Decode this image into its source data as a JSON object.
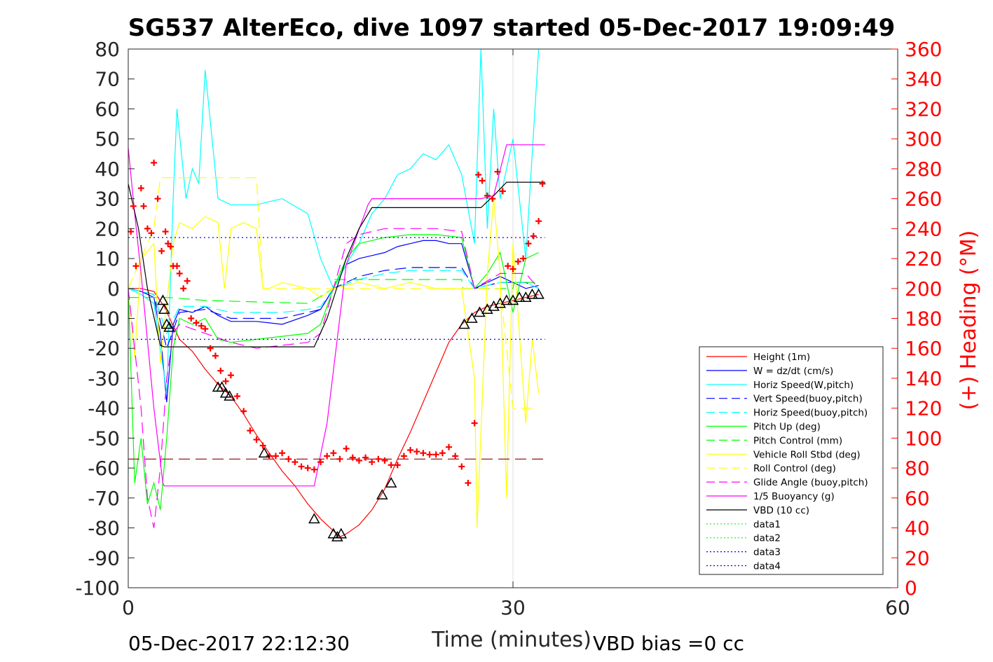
{
  "chart_data": {
    "type": "line",
    "title": "SG537 AlterEco, dive 1097 started 05-Dec-2017 19:09:49",
    "xlabel": "Time (minutes)",
    "ylabel": "",
    "ylabel_right": "(+) Heading (°M)",
    "xlim": [
      0,
      60
    ],
    "ylim": [
      -100,
      80
    ],
    "ylim_right": [
      0,
      360
    ],
    "x_ticks": [
      "0",
      "30",
      "60"
    ],
    "y_ticks": [
      "80",
      "70",
      "60",
      "50",
      "40",
      "30",
      "20",
      "10",
      "0",
      "-10",
      "-20",
      "-30",
      "-40",
      "-50",
      "-60",
      "-70",
      "-80",
      "-90",
      "-100"
    ],
    "y_ticks_right": [
      "360",
      "340",
      "320",
      "300",
      "280",
      "260",
      "240",
      "220",
      "200",
      "180",
      "160",
      "140",
      "120",
      "100",
      "80",
      "60",
      "40",
      "20",
      "0"
    ],
    "footer_left": "05-Dec-2017 22:12:30",
    "footer_right": "VBD bias =0 cc",
    "grid": "x at 30 only",
    "legend_position": "lower-right",
    "series": [
      {
        "name": "Height (1m)",
        "color": "#ff0000",
        "style": "solid",
        "x": [
          0,
          1,
          2,
          2.8,
          4,
          5,
          6,
          7,
          8,
          9,
          10,
          11,
          12,
          13,
          14,
          15,
          16,
          16.5,
          17,
          18,
          19,
          20,
          21,
          22,
          23,
          24,
          25,
          26,
          26.5,
          27,
          28,
          29,
          30,
          31,
          32
        ],
        "y": [
          0,
          0,
          -1,
          -6,
          -17,
          -21,
          -27,
          -32,
          -36,
          -42,
          -49,
          -55,
          -61,
          -66,
          -72,
          -77,
          -81,
          -83,
          -82,
          -79,
          -74,
          -67,
          -57,
          -48,
          -38,
          -28,
          -18,
          -12,
          -10,
          -8,
          -6,
          -5,
          -4,
          -3,
          -2
        ]
      },
      {
        "name": "W = dz/dt (cm/s)",
        "color": "#0000ff",
        "style": "solid",
        "x": [
          0,
          1,
          2,
          2.5,
          3,
          3.5,
          4,
          5,
          6,
          7,
          8,
          10,
          12,
          14,
          15,
          16,
          17,
          18,
          19,
          20,
          21,
          22,
          23,
          24,
          25,
          26,
          27,
          28,
          29,
          30,
          31,
          32
        ],
        "y": [
          0,
          -1,
          -3,
          -15,
          -38,
          -12,
          -7,
          -8,
          -6,
          -9,
          -11,
          -11,
          -12,
          -9,
          -7,
          0,
          8,
          10,
          11,
          12,
          14,
          15,
          16,
          16,
          15,
          15,
          0,
          2,
          4,
          2,
          0,
          1
        ]
      },
      {
        "name": "Horiz Speed(W,pitch)",
        "color": "#00ffff",
        "style": "solid",
        "x": [
          0,
          1,
          2,
          2.5,
          3,
          3.5,
          3.8,
          4.5,
          5,
          5.5,
          6,
          7,
          8,
          10,
          12,
          14,
          15,
          16,
          17,
          18,
          19,
          20,
          21,
          22,
          23,
          24,
          25,
          26,
          27,
          27.5,
          28,
          28.5,
          29,
          30,
          31,
          32
        ],
        "y": [
          0,
          -2,
          -5,
          -20,
          -35,
          30,
          60,
          30,
          40,
          35,
          73,
          30,
          28,
          28,
          30,
          25,
          10,
          0,
          8,
          15,
          25,
          30,
          38,
          40,
          45,
          43,
          48,
          38,
          15,
          80,
          20,
          60,
          30,
          50,
          10,
          80
        ]
      },
      {
        "name": "Vert Speed(buoy,pitch)",
        "color": "#0000ff",
        "style": "dashed",
        "x": [
          0,
          2,
          3,
          4,
          6,
          8,
          10,
          12,
          14,
          15,
          16,
          18,
          20,
          22,
          24,
          26,
          27,
          29,
          31,
          32
        ],
        "y": [
          0,
          -2,
          -20,
          -8,
          -7,
          -10,
          -10,
          -10,
          -8,
          -7,
          0,
          4,
          6,
          7,
          7,
          7,
          0,
          2,
          2,
          0
        ]
      },
      {
        "name": "Horiz Speed(buoy,pitch)",
        "color": "#00ffff",
        "style": "dashed",
        "x": [
          0,
          2,
          3,
          4,
          6,
          8,
          10,
          12,
          14,
          15,
          16,
          18,
          20,
          22,
          24,
          26,
          27,
          29,
          31,
          32
        ],
        "y": [
          0,
          -2,
          -15,
          -6,
          -6,
          -8,
          -8,
          -8,
          -7,
          -6,
          0,
          3,
          5,
          6,
          6,
          6,
          0,
          2,
          2,
          0
        ]
      },
      {
        "name": "Pitch Up (deg)",
        "color": "#00ff00",
        "style": "solid",
        "x": [
          0,
          0.5,
          1,
          1.5,
          2,
          2.5,
          3,
          3.5,
          4,
          5,
          6,
          7,
          8,
          10,
          12,
          14,
          15,
          16,
          17,
          18,
          20,
          22,
          24,
          26,
          27,
          28,
          29,
          30,
          31,
          32
        ],
        "y": [
          0,
          -65,
          -50,
          -72,
          -65,
          -74,
          -50,
          -20,
          -10,
          -12,
          -10,
          -17,
          -18,
          -17,
          -16,
          -15,
          -12,
          0,
          10,
          15,
          17,
          18,
          18,
          17,
          0,
          5,
          12,
          -8,
          10,
          12
        ]
      },
      {
        "name": "Pitch Control (mm)",
        "color": "#00ff00",
        "style": "dashed",
        "x": [
          0,
          3,
          3.1,
          6,
          6.1,
          14,
          14.1,
          16,
          16.1,
          26,
          26.1,
          30,
          30.1,
          32
        ],
        "y": [
          -3,
          -3,
          -3,
          -4,
          -4,
          -5,
          -5,
          0,
          3,
          3,
          0,
          0,
          2,
          2
        ]
      },
      {
        "name": "Vehicle Roll Stbd (deg)",
        "color": "#ffff00",
        "style": "solid",
        "x": [
          0,
          0.5,
          1,
          2,
          2.5,
          3,
          3.5,
          4,
          5,
          6,
          7,
          7.5,
          8,
          9,
          10,
          10.5,
          11,
          12,
          14,
          15,
          16,
          18,
          20,
          22,
          24,
          26,
          27,
          27.2,
          28,
          28.5,
          29,
          29.5,
          30,
          31,
          31.5,
          32
        ],
        "y": [
          0,
          -23,
          10,
          15,
          -25,
          -5,
          15,
          22,
          20,
          24,
          22,
          0,
          20,
          22,
          20,
          0,
          0,
          2,
          0,
          -3,
          0,
          2,
          0,
          2,
          0,
          0,
          -30,
          -80,
          5,
          30,
          5,
          -70,
          15,
          -45,
          -17,
          -35
        ]
      },
      {
        "name": "Roll Control (deg)",
        "color": "#ffff00",
        "style": "dashed",
        "x": [
          0,
          2,
          2.5,
          3,
          6,
          8,
          10,
          10.5,
          14,
          16,
          18,
          20,
          22,
          24,
          26,
          27,
          29,
          30,
          32
        ],
        "y": [
          0,
          20,
          37,
          37,
          37,
          37,
          37,
          0,
          0,
          0,
          0,
          0,
          0,
          0,
          0,
          0,
          0,
          -40,
          -40
        ]
      },
      {
        "name": "Glide Angle (buoy,pitch)",
        "color": "#ff00ff",
        "style": "dashed",
        "x": [
          0,
          1,
          1.5,
          2,
          2.5,
          3,
          3.5,
          4,
          6,
          8,
          10,
          12,
          14,
          15,
          16,
          17,
          18,
          20,
          22,
          24,
          26,
          27,
          29,
          31,
          32
        ],
        "y": [
          0,
          -40,
          -70,
          -80,
          -60,
          -30,
          -15,
          -12,
          -15,
          -18,
          -20,
          -19,
          -18,
          -15,
          0,
          15,
          18,
          20,
          20,
          20,
          19,
          0,
          5,
          5,
          0
        ]
      },
      {
        "name": "1/5 Buoyancy (g)",
        "color": "#ff00ff",
        "style": "solid",
        "x": [
          0,
          0.5,
          1,
          2,
          2.7,
          2.8,
          10,
          14.5,
          15.5,
          17,
          18.7,
          19,
          26,
          27.5,
          28.5,
          29.5,
          32.5
        ],
        "y": [
          47,
          25,
          5,
          -40,
          -65,
          -66,
          -66,
          -66,
          -45,
          8,
          28,
          30,
          30,
          30,
          31,
          48,
          48
        ]
      },
      {
        "name": "VBD (10 cc)",
        "color": "#000000",
        "style": "solid",
        "x": [
          0,
          0.8,
          1.5,
          2.5,
          2.8,
          10,
          14.5,
          15.5,
          17,
          18,
          19,
          26,
          27.5,
          28.5,
          29.5,
          32.5
        ],
        "y": [
          35,
          20,
          0,
          -19,
          -19.5,
          -19.5,
          -19.5,
          -10,
          10,
          20,
          27,
          27,
          27,
          31,
          35.5,
          35.5
        ]
      },
      {
        "name": "data1",
        "color": "#00ff00",
        "style": "dotted",
        "x": [],
        "y": []
      },
      {
        "name": "data2",
        "color": "#00ff00",
        "style": "dotted",
        "x": [],
        "y": []
      },
      {
        "name": "data3",
        "color": "#0000ff",
        "style": "dotted",
        "x": [
          0,
          32.5
        ],
        "y": [
          17,
          17
        ]
      },
      {
        "name": "data4",
        "color": "#0000ff",
        "style": "dotted",
        "x": [
          0,
          32.5
        ],
        "y": [
          -17,
          -17
        ]
      }
    ],
    "reference_line": {
      "color": "#8b0000",
      "style": "dashed",
      "x": [
        0,
        32.5
      ],
      "y": [
        -57,
        -57
      ]
    },
    "heading_points": {
      "axis": "right",
      "color": "#ff0000",
      "marker": "+",
      "x": [
        0.2,
        0.4,
        0.6,
        1,
        1.2,
        1.5,
        1.8,
        2,
        2.3,
        2.6,
        2.9,
        3.1,
        3.3,
        3.5,
        3.8,
        4,
        4.3,
        4.6,
        4.9,
        5.3,
        5.7,
        6,
        6.4,
        6.8,
        7.2,
        7.6,
        8,
        8.5,
        9,
        9.5,
        10,
        10.5,
        11,
        11.5,
        12,
        12.5,
        13,
        13.5,
        14,
        14.5,
        15,
        15.5,
        16,
        16.5,
        17,
        17.5,
        18,
        18.5,
        19,
        19.5,
        20,
        20.5,
        21,
        21.5,
        22,
        22.5,
        23,
        23.5,
        24,
        24.5,
        25,
        25.5,
        26,
        26.5,
        27,
        27.3,
        27.6,
        28,
        28.4,
        28.8,
        29.2,
        29.6,
        30,
        30.4,
        30.8,
        31.2,
        31.6,
        32,
        32.3
      ],
      "y": [
        238,
        255,
        215,
        267,
        255,
        240,
        237,
        284,
        260,
        225,
        238,
        230,
        228,
        215,
        215,
        210,
        200,
        205,
        180,
        177,
        175,
        173,
        160,
        155,
        145,
        138,
        142,
        128,
        118,
        105,
        99,
        95,
        88,
        88,
        90,
        86,
        84,
        81,
        80,
        79,
        84,
        88,
        90,
        86,
        93,
        87,
        85,
        87,
        84,
        86,
        85,
        82,
        82,
        88,
        92,
        91,
        90,
        89,
        89,
        90,
        94,
        88,
        81,
        70,
        110,
        276,
        272,
        262,
        260,
        278,
        265,
        215,
        213,
        218,
        220,
        230,
        235,
        245,
        270
      ]
    },
    "triangle_markers": {
      "color": "#000000",
      "x": [
        2.7,
        2.8,
        3,
        3.2,
        7,
        7.3,
        7.6,
        7.9,
        10.6,
        14.5,
        16,
        16.3,
        16.6,
        19.8,
        20.5,
        26.2,
        26.8,
        27.4,
        28,
        28.5,
        29,
        29.5,
        30,
        30.5,
        31,
        31.5,
        32
      ],
      "y": [
        -4,
        -7,
        -12,
        -13,
        -33,
        -33,
        -35,
        -36,
        -55,
        -77,
        -82,
        -83,
        -82,
        -69,
        -65,
        -12,
        -10,
        -8,
        -7,
        -6,
        -5,
        -4,
        -4,
        -3,
        -3,
        -2,
        -2
      ]
    }
  }
}
